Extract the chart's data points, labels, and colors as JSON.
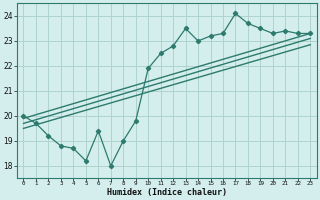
{
  "xlabel": "Humidex (Indice chaleur)",
  "ylabel": "",
  "bg_color": "#d4eeed",
  "line_color": "#2d7a6e",
  "grid_color": "#aed4d0",
  "xlim": [
    -0.5,
    23.5
  ],
  "ylim": [
    17.5,
    24.5
  ],
  "xticks": [
    0,
    1,
    2,
    3,
    4,
    5,
    6,
    7,
    8,
    9,
    10,
    11,
    12,
    13,
    14,
    15,
    16,
    17,
    18,
    19,
    20,
    21,
    22,
    23
  ],
  "yticks": [
    18,
    19,
    20,
    21,
    22,
    23,
    24
  ],
  "zigzag_x": [
    0,
    1,
    2,
    3,
    4,
    5,
    6,
    7,
    8,
    9,
    10,
    11,
    12,
    13,
    14,
    15,
    16,
    17,
    18,
    19,
    20,
    21,
    22,
    23
  ],
  "zigzag_y": [
    20.0,
    19.7,
    19.2,
    18.8,
    18.7,
    18.2,
    19.4,
    18.0,
    19.0,
    19.8,
    21.9,
    22.5,
    22.8,
    23.5,
    23.0,
    23.2,
    23.3,
    24.1,
    23.7,
    23.5,
    23.3,
    23.4,
    23.3,
    23.3
  ],
  "line1_x": [
    0,
    23
  ],
  "line1_y": [
    19.9,
    23.3
  ],
  "line2_x": [
    0,
    23
  ],
  "line2_y": [
    19.7,
    23.1
  ],
  "line3_x": [
    0,
    23
  ],
  "line3_y": [
    19.5,
    22.85
  ]
}
